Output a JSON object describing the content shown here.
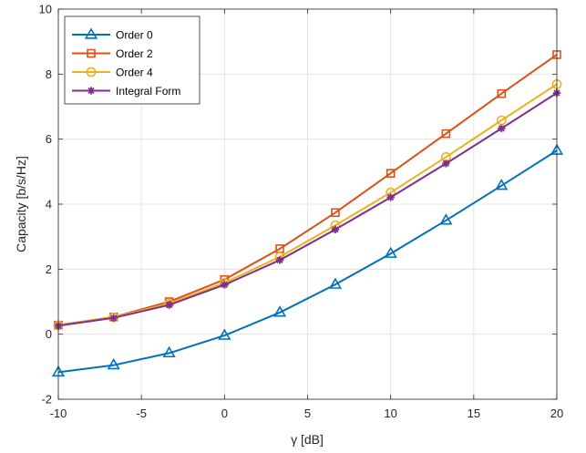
{
  "chart_data": {
    "type": "line",
    "xlabel": "γ [dB]",
    "ylabel": "Capacity [b/s/Hz]",
    "xlim": [
      -10,
      20
    ],
    "ylim": [
      -2,
      10
    ],
    "xticks": [
      -10,
      -5,
      0,
      5,
      10,
      15,
      20
    ],
    "yticks": [
      -2,
      0,
      2,
      4,
      6,
      8,
      10
    ],
    "xtick_labels": [
      "-10",
      "-5",
      "0",
      "5",
      "10",
      "15",
      "20"
    ],
    "ytick_labels": [
      "-2",
      "0",
      "2",
      "4",
      "6",
      "8",
      "10"
    ],
    "grid": true,
    "box": true,
    "legend_position": "top-left",
    "x": [
      -10,
      -6.67,
      -3.33,
      0,
      3.33,
      6.67,
      10,
      13.33,
      16.67,
      20
    ],
    "series": [
      {
        "name": "Order 0",
        "color": "#0072BD",
        "marker": "triangle",
        "values": [
          -1.17,
          -0.95,
          -0.58,
          -0.04,
          0.67,
          1.53,
          2.48,
          3.5,
          4.57,
          5.65
        ]
      },
      {
        "name": "Order 2",
        "color": "#D95319",
        "marker": "square",
        "values": [
          0.28,
          0.53,
          1.0,
          1.68,
          2.63,
          3.74,
          4.95,
          6.17,
          7.4,
          8.6
        ]
      },
      {
        "name": "Order 4",
        "color": "#EDB120",
        "marker": "circle",
        "values": [
          0.27,
          0.52,
          0.94,
          1.58,
          2.38,
          3.35,
          4.36,
          5.45,
          6.58,
          7.69
        ]
      },
      {
        "name": "Integral Form",
        "color": "#7E2F8E",
        "marker": "asterisk",
        "values": [
          0.26,
          0.5,
          0.9,
          1.52,
          2.28,
          3.22,
          4.21,
          5.25,
          6.33,
          7.42
        ]
      }
    ]
  }
}
